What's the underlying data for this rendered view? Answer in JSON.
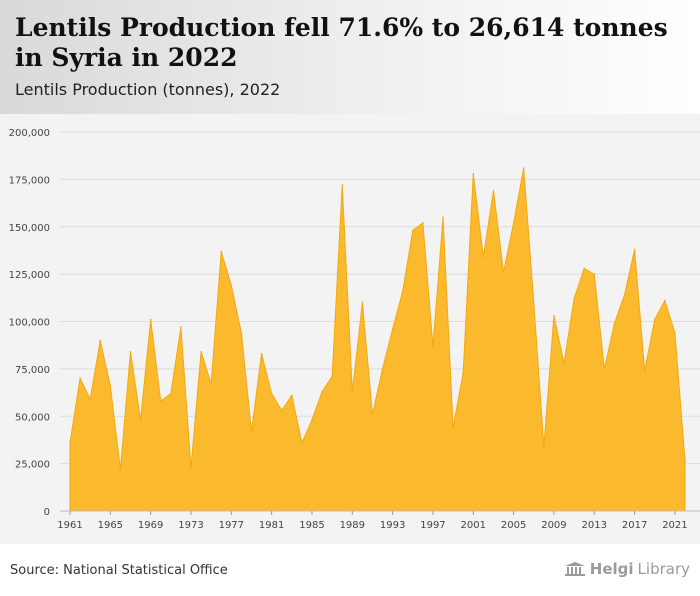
{
  "header": {
    "title": "Lentils Production fell 71.6% to 26,614 tonnes in Syria in 2022",
    "subtitle": "Lentils Production (tonnes), 2022"
  },
  "footer": {
    "source": "Source: National Statistical Office",
    "brand_name": "Helgi",
    "brand_suffix": "Library",
    "brand_icon": "library-building-icon"
  },
  "colors": {
    "area_fill": "#FBBA2D",
    "area_stroke": "#F2A90F",
    "grid": "#dcdcdc",
    "axis_text": "#444444",
    "chart_bg": "#f3f3f3"
  },
  "chart_data": {
    "type": "area",
    "title": "Lentils Production (tonnes), 2022",
    "xlabel": "",
    "ylabel": "",
    "ylim": [
      0,
      200000
    ],
    "yticks": [
      0,
      25000,
      50000,
      75000,
      100000,
      125000,
      150000,
      175000,
      200000
    ],
    "ytick_labels": [
      "0",
      "25,000",
      "50,000",
      "75,000",
      "100,000",
      "125,000",
      "150,000",
      "175,000",
      "200,000"
    ],
    "xlim": [
      1961,
      2022
    ],
    "xticks": [
      1961,
      1965,
      1969,
      1973,
      1977,
      1981,
      1985,
      1989,
      1993,
      1997,
      2001,
      2005,
      2009,
      2013,
      2017,
      2021
    ],
    "grid": true,
    "legend": "none",
    "x": [
      1961,
      1962,
      1963,
      1964,
      1965,
      1966,
      1967,
      1968,
      1969,
      1970,
      1971,
      1972,
      1973,
      1974,
      1975,
      1976,
      1977,
      1978,
      1979,
      1980,
      1981,
      1982,
      1983,
      1984,
      1985,
      1986,
      1987,
      1988,
      1989,
      1990,
      1991,
      1992,
      1993,
      1994,
      1995,
      1996,
      1997,
      1998,
      1999,
      2000,
      2001,
      2002,
      2003,
      2004,
      2005,
      2006,
      2007,
      2008,
      2009,
      2010,
      2011,
      2012,
      2013,
      2014,
      2015,
      2016,
      2017,
      2018,
      2019,
      2020,
      2021,
      2022
    ],
    "values": [
      36000,
      70000,
      59000,
      90000,
      66000,
      22000,
      84000,
      48000,
      101000,
      58000,
      62000,
      97000,
      23000,
      84000,
      67000,
      137000,
      119000,
      94000,
      42000,
      83000,
      62000,
      53000,
      61000,
      36000,
      48000,
      63000,
      71000,
      172000,
      63000,
      110000,
      51000,
      75000,
      96000,
      116000,
      148000,
      152000,
      87000,
      155000,
      44000,
      73000,
      178000,
      134000,
      169000,
      126000,
      152000,
      181000,
      110000,
      34000,
      103000,
      78000,
      112000,
      128000,
      125000,
      75000,
      99000,
      114000,
      138000,
      74000,
      101000,
      111000,
      94000,
      26614
    ]
  }
}
